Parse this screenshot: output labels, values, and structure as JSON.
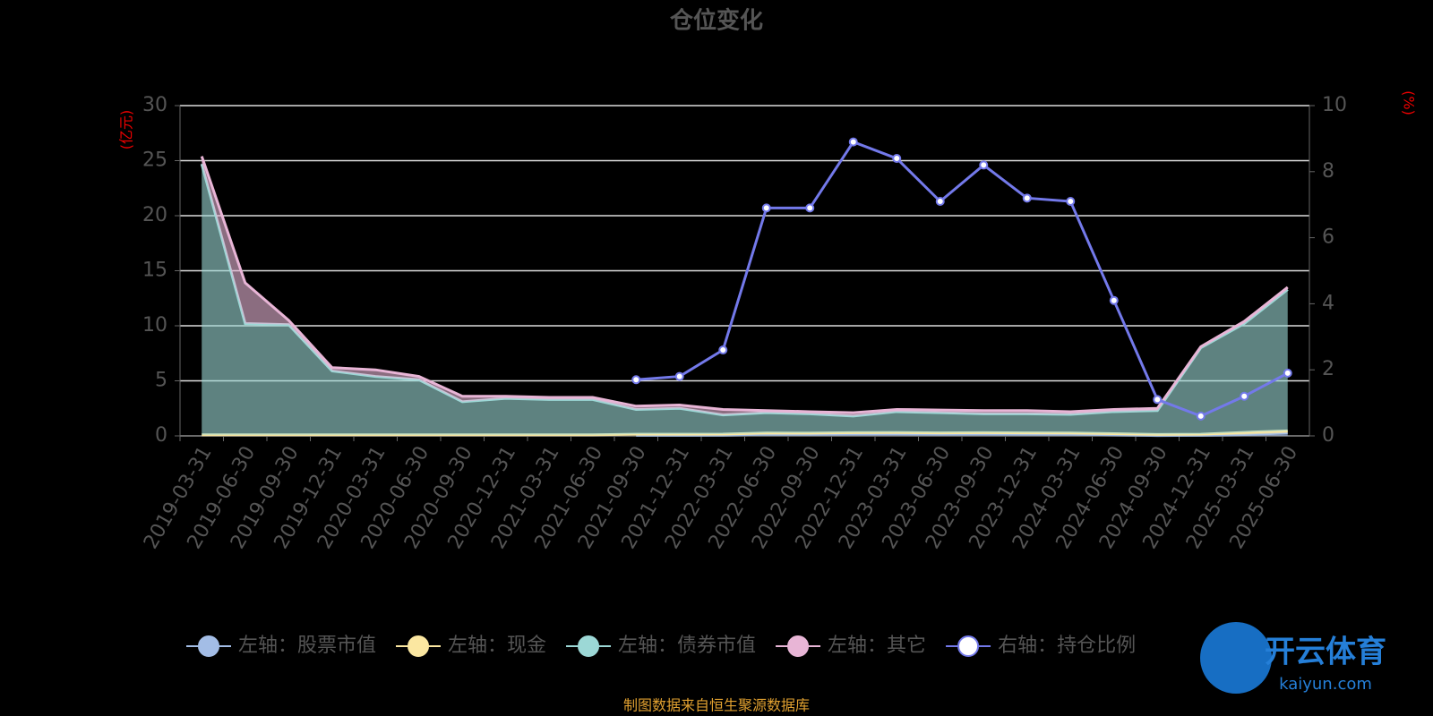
{
  "chart_data": {
    "type": "stacked_area_line",
    "title": "仓位变化",
    "y_unit_label": "(亿元)",
    "y2_unit_label": "(%)",
    "source": "制图数据来自恒生聚源数据库",
    "watermark": [
      "开云体育",
      "kaiyun.com"
    ],
    "categories": [
      "2019-03-31",
      "2019-06-30",
      "2019-09-30",
      "2019-12-31",
      "2020-03-31",
      "2020-06-30",
      "2020-09-30",
      "2020-12-31",
      "2021-03-31",
      "2021-06-30",
      "2021-09-30",
      "2021-12-31",
      "2022-03-31",
      "2022-06-30",
      "2022-09-30",
      "2022-12-31",
      "2023-03-31",
      "2023-06-30",
      "2023-09-30",
      "2023-12-31",
      "2024-03-31",
      "2024-06-30",
      "2024-09-30",
      "2024-12-31",
      "2025-03-31",
      "2025-06-30"
    ],
    "ylim": [
      0,
      30
    ],
    "yticks": [
      0,
      5,
      10,
      15,
      20,
      25,
      30
    ],
    "y2lim": [
      0,
      10
    ],
    "y2ticks": [
      0,
      2,
      4,
      6,
      8,
      10
    ],
    "grid": true,
    "series": [
      {
        "name": "左轴：股票市值",
        "color": "#a3bde6",
        "stack": true,
        "values": [
          null,
          null,
          null,
          null,
          null,
          null,
          null,
          null,
          null,
          null,
          0.05,
          0.05,
          0.06,
          0.16,
          0.15,
          0.19,
          0.2,
          0.17,
          0.19,
          0.17,
          0.16,
          0.1,
          0.03,
          0.05,
          0.12,
          0.26
        ]
      },
      {
        "name": "左轴：现金",
        "color": "#fbe7a1",
        "stack": true,
        "values": [
          0.1,
          0.1,
          0.1,
          0.1,
          0.1,
          0.1,
          0.1,
          0.1,
          0.1,
          0.1,
          0.1,
          0.1,
          0.1,
          0.1,
          0.1,
          0.1,
          0.1,
          0.1,
          0.1,
          0.1,
          0.1,
          0.1,
          0.1,
          0.1,
          0.2,
          0.2
        ]
      },
      {
        "name": "左轴：债券市值",
        "color": "#9cd8d6",
        "stack": true,
        "values": [
          24.6,
          10.1,
          10.0,
          5.8,
          5.3,
          5.0,
          3.0,
          3.3,
          3.2,
          3.2,
          2.25,
          2.35,
          1.74,
          1.84,
          1.75,
          1.51,
          1.9,
          1.83,
          1.71,
          1.73,
          1.69,
          2.0,
          2.17,
          7.85,
          9.88,
          12.84
        ]
      },
      {
        "name": "左轴：其它",
        "color": "#e8b5d6",
        "stack": true,
        "values": [
          0.7,
          3.7,
          0.4,
          0.3,
          0.6,
          0.3,
          0.5,
          0.2,
          0.2,
          0.2,
          0.3,
          0.3,
          0.5,
          0.2,
          0.2,
          0.3,
          0.2,
          0.25,
          0.3,
          0.3,
          0.25,
          0.2,
          0.2,
          0.1,
          0.2,
          0.2
        ]
      },
      {
        "name": "右轴：持仓比例",
        "color": "#7379ea",
        "axis": "y2",
        "values": [
          null,
          null,
          null,
          null,
          null,
          null,
          null,
          null,
          null,
          null,
          1.7,
          1.8,
          2.6,
          6.9,
          6.9,
          8.9,
          8.4,
          7.1,
          8.2,
          7.2,
          7.1,
          4.1,
          1.1,
          0.6,
          1.2,
          1.9
        ]
      }
    ]
  }
}
